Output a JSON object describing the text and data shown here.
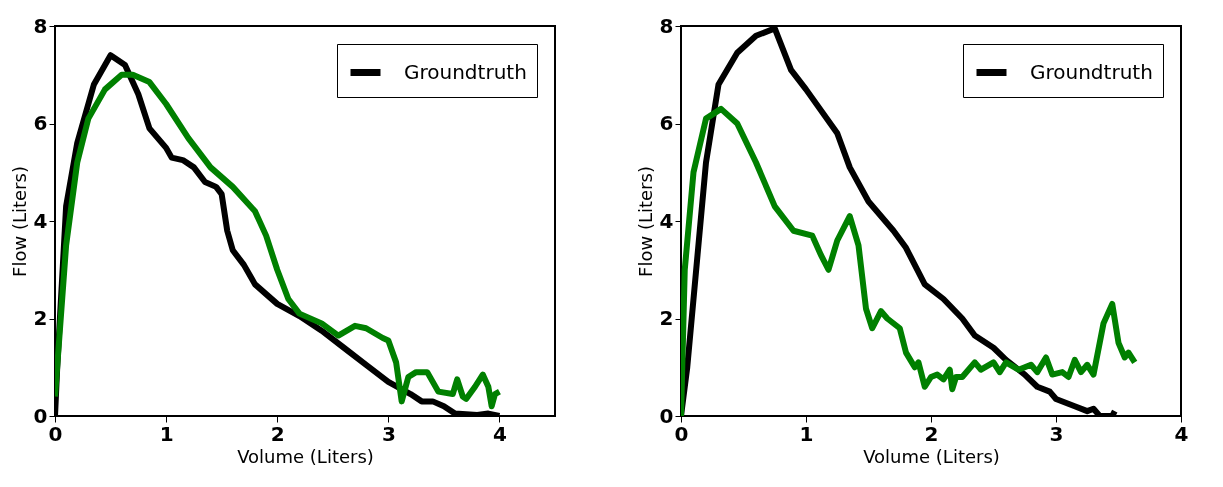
{
  "chart_data": [
    {
      "type": "line",
      "xlabel": "Volume (Liters)",
      "ylabel": "Flow (Liters)",
      "xlim": [
        0,
        4.5
      ],
      "xticks": [
        0,
        1,
        2,
        3,
        4
      ],
      "ylim": [
        0,
        8
      ],
      "yticks": [
        0,
        2,
        4,
        6,
        8
      ],
      "legend": "top right",
      "line_style": "solid",
      "series": [
        {
          "name": "Groundtruth",
          "color": "#000000",
          "x": [
            0,
            0.02,
            0.1,
            0.2,
            0.35,
            0.5,
            0.63,
            0.75,
            0.85,
            1.0,
            1.05,
            1.15,
            1.25,
            1.35,
            1.45,
            1.5,
            1.55,
            1.6,
            1.7,
            1.8,
            1.9,
            2.0,
            2.2,
            2.4,
            2.6,
            2.8,
            3.0,
            3.2,
            3.3,
            3.4,
            3.5,
            3.6,
            3.8,
            3.9,
            4.0
          ],
          "values": [
            0,
            1.0,
            4.3,
            5.6,
            6.8,
            7.4,
            7.2,
            6.6,
            5.9,
            5.5,
            5.3,
            5.25,
            5.1,
            4.8,
            4.7,
            4.55,
            3.8,
            3.4,
            3.1,
            2.7,
            2.5,
            2.3,
            2.05,
            1.75,
            1.4,
            1.05,
            0.7,
            0.45,
            0.3,
            0.3,
            0.2,
            0.05,
            0.02,
            0.05,
            0
          ]
        },
        {
          "color": "#008000",
          "x": [
            0,
            0.1,
            0.2,
            0.3,
            0.45,
            0.6,
            0.7,
            0.85,
            1.0,
            1.2,
            1.4,
            1.6,
            1.8,
            1.9,
            2.0,
            2.1,
            2.2,
            2.4,
            2.55,
            2.7,
            2.8,
            2.95,
            3.0,
            3.07,
            3.12,
            3.18,
            3.25,
            3.35,
            3.45,
            3.58,
            3.62,
            3.67,
            3.7,
            3.78,
            3.85,
            3.9,
            3.93,
            3.96,
            4.0
          ],
          "values": [
            0.4,
            3.5,
            5.2,
            6.1,
            6.7,
            7.0,
            7.0,
            6.85,
            6.4,
            5.7,
            5.1,
            4.7,
            4.2,
            3.7,
            3.0,
            2.4,
            2.1,
            1.9,
            1.65,
            1.85,
            1.8,
            1.6,
            1.55,
            1.1,
            0.3,
            0.8,
            0.9,
            0.9,
            0.5,
            0.45,
            0.75,
            0.4,
            0.35,
            0.6,
            0.85,
            0.6,
            0.2,
            0.45,
            0.5
          ]
        }
      ]
    },
    {
      "type": "line",
      "xlabel": "Volume (Liters)",
      "ylabel": "Flow (Liters)",
      "xlim": [
        0,
        4
      ],
      "xticks": [
        0,
        1,
        2,
        3,
        4
      ],
      "ylim": [
        0,
        8
      ],
      "yticks": [
        0,
        2,
        4,
        6,
        8
      ],
      "legend": "top right",
      "line_style": "solid",
      "series": [
        {
          "name": "Groundtruth",
          "color": "#000000",
          "x": [
            0,
            0.05,
            0.2,
            0.3,
            0.45,
            0.6,
            0.75,
            0.88,
            1.0,
            1.25,
            1.35,
            1.5,
            1.7,
            1.8,
            1.95,
            2.1,
            2.25,
            2.35,
            2.5,
            2.6,
            2.75,
            2.85,
            2.95,
            3.0,
            3.15,
            3.25,
            3.3,
            3.35,
            3.45,
            3.47
          ],
          "values": [
            0,
            1.0,
            5.2,
            6.8,
            7.45,
            7.8,
            7.95,
            7.1,
            6.7,
            5.8,
            5.1,
            4.4,
            3.8,
            3.45,
            2.7,
            2.4,
            2.0,
            1.65,
            1.4,
            1.15,
            0.85,
            0.6,
            0.5,
            0.35,
            0.2,
            0.1,
            0.15,
            0,
            0,
            0.1
          ]
        },
        {
          "color": "#008000",
          "x": [
            0,
            0.03,
            0.1,
            0.2,
            0.32,
            0.45,
            0.6,
            0.75,
            0.9,
            1.05,
            1.12,
            1.18,
            1.25,
            1.35,
            1.42,
            1.48,
            1.53,
            1.6,
            1.65,
            1.75,
            1.8,
            1.87,
            1.9,
            1.95,
            2.0,
            2.05,
            2.1,
            2.15,
            2.17,
            2.2,
            2.25,
            2.35,
            2.4,
            2.5,
            2.55,
            2.6,
            2.7,
            2.8,
            2.85,
            2.92,
            2.97,
            3.05,
            3.1,
            3.15,
            3.2,
            3.25,
            3.3,
            3.38,
            3.45,
            3.5,
            3.55,
            3.58,
            3.63
          ],
          "values": [
            0,
            3.0,
            5.0,
            6.1,
            6.3,
            6.0,
            5.2,
            4.3,
            3.8,
            3.7,
            3.3,
            3.0,
            3.6,
            4.1,
            3.5,
            2.2,
            1.8,
            2.15,
            2.0,
            1.8,
            1.3,
            1.0,
            1.1,
            0.6,
            0.8,
            0.85,
            0.75,
            0.95,
            0.55,
            0.8,
            0.8,
            1.1,
            0.95,
            1.1,
            0.9,
            1.1,
            0.95,
            1.05,
            0.9,
            1.2,
            0.85,
            0.9,
            0.8,
            1.15,
            0.9,
            1.05,
            0.85,
            1.9,
            2.3,
            1.5,
            1.2,
            1.3,
            1.1
          ]
        }
      ]
    }
  ]
}
